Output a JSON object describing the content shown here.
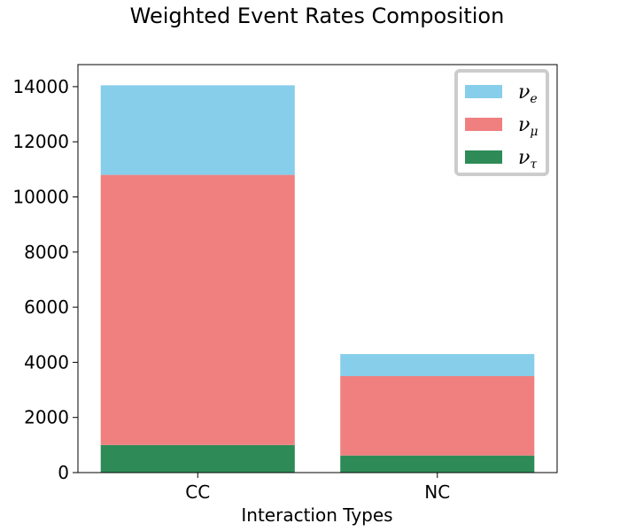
{
  "chart_data": {
    "type": "bar",
    "stacked": true,
    "title": "Weighted Event Rates Composition",
    "xlabel": "Interaction Types",
    "ylabel": "",
    "categories": [
      "CC",
      "NC"
    ],
    "ylim": [
      0,
      14800
    ],
    "yticks": [
      0,
      2000,
      4000,
      6000,
      8000,
      10000,
      12000,
      14000
    ],
    "ytick_labels": [
      "0",
      "2000",
      "4000",
      "6000",
      "8000",
      "10000",
      "12000",
      "14000"
    ],
    "grid": false,
    "legend_position": "top-right",
    "series": [
      {
        "name": "ν_τ",
        "symbol": "ν",
        "sub": "τ",
        "color": "#2e8b57",
        "values": [
          1000,
          620
        ]
      },
      {
        "name": "ν_μ",
        "symbol": "ν",
        "sub": "μ",
        "color": "#f08080",
        "values": [
          9800,
          2880
        ]
      },
      {
        "name": "ν_e",
        "symbol": "ν",
        "sub": "e",
        "color": "#87ceeb",
        "values": [
          3250,
          800
        ]
      }
    ],
    "legend_order": [
      2,
      1,
      0
    ]
  }
}
